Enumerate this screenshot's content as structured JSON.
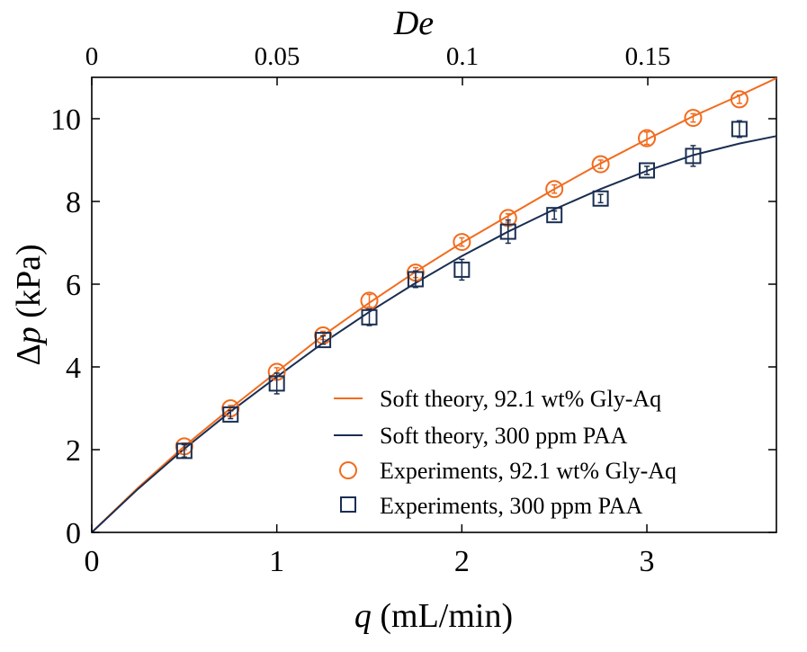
{
  "chart_data": {
    "type": "scatter",
    "xlabel_var": "q",
    "xlabel_unit": "(mL/min)",
    "ylabel_var": "p",
    "ylabel_unit": "(kPa)",
    "top_xlabel": "De",
    "xlim": [
      0,
      3.7
    ],
    "ylim": [
      0,
      11
    ],
    "top_xlim": [
      0,
      0.1847
    ],
    "xticks": [
      0,
      1,
      2,
      3
    ],
    "yticks": [
      0,
      2,
      4,
      6,
      8,
      10
    ],
    "top_xticks": [
      0,
      0.05,
      0.1,
      0.15
    ],
    "top_tick_labels": [
      "0",
      "0.05",
      "0.1",
      "0.15"
    ],
    "colors": {
      "gly": "#f26b1d",
      "paa": "#1a2e52"
    },
    "legend": {
      "position": "bottom-right",
      "entries": [
        "Soft theory, 92.1 wt% Gly-Aq",
        "Soft theory, 300 ppm PAA",
        "Experiments, 92.1 wt% Gly-Aq",
        "Experiments, 300 ppm PAA"
      ]
    },
    "series": [
      {
        "name": "Soft theory, 92.1 wt% Gly-Aq",
        "kind": "line",
        "color": "#f26b1d",
        "x": [
          0,
          0.25,
          0.5,
          0.75,
          1.0,
          1.25,
          1.5,
          1.75,
          2.0,
          2.25,
          2.5,
          2.75,
          3.0,
          3.25,
          3.5,
          3.7
        ],
        "y": [
          0,
          1.08,
          2.08,
          3.0,
          3.88,
          4.76,
          5.55,
          6.3,
          7.0,
          7.65,
          8.3,
          8.92,
          9.5,
          10.06,
          10.56,
          10.98
        ]
      },
      {
        "name": "Soft theory, 300 ppm PAA",
        "kind": "line",
        "color": "#1a2e52",
        "x": [
          0,
          0.25,
          0.5,
          0.75,
          1.0,
          1.25,
          1.5,
          1.75,
          2.0,
          2.25,
          2.5,
          2.75,
          3.0,
          3.25,
          3.5,
          3.7
        ],
        "y": [
          0,
          1.05,
          2.02,
          2.92,
          3.76,
          4.58,
          5.33,
          6.03,
          6.68,
          7.27,
          7.81,
          8.3,
          8.74,
          9.12,
          9.4,
          9.58
        ]
      },
      {
        "name": "Experiments, 92.1 wt% Gly-Aq",
        "kind": "circle",
        "color": "#f26b1d",
        "x": [
          0.5,
          0.75,
          1.0,
          1.25,
          1.5,
          1.75,
          2.0,
          2.25,
          2.5,
          2.75,
          3.0,
          3.25,
          3.5
        ],
        "y": [
          2.08,
          3.0,
          3.88,
          4.76,
          5.6,
          6.28,
          7.02,
          7.6,
          8.3,
          8.9,
          9.53,
          10.02,
          10.47
        ],
        "err": [
          0.08,
          0.07,
          0.1,
          0.1,
          0.15,
          0.12,
          0.1,
          0.1,
          0.1,
          0.1,
          0.15,
          0.1,
          0.1
        ]
      },
      {
        "name": "Experiments, 300 ppm PAA",
        "kind": "square",
        "color": "#1a2e52",
        "x": [
          0.5,
          0.75,
          1.0,
          1.25,
          1.5,
          1.75,
          2.0,
          2.25,
          2.5,
          2.75,
          3.0,
          3.25,
          3.5
        ],
        "y": [
          1.97,
          2.85,
          3.6,
          4.65,
          5.2,
          6.12,
          6.35,
          7.27,
          7.67,
          8.07,
          8.75,
          9.1,
          9.75
        ],
        "err": [
          0.15,
          0.1,
          0.25,
          0.1,
          0.2,
          0.2,
          0.25,
          0.28,
          0.1,
          0.1,
          0.1,
          0.25,
          0.2
        ]
      }
    ]
  }
}
